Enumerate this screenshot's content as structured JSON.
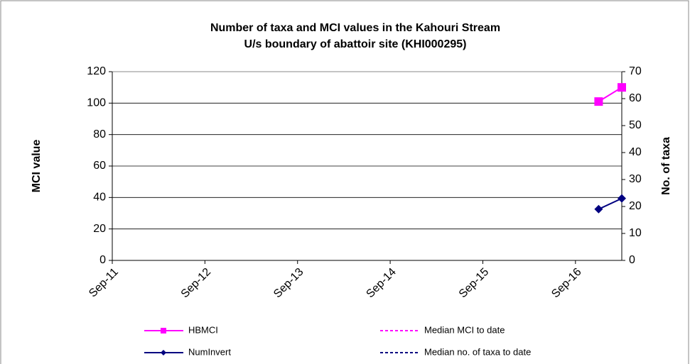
{
  "chart_data": {
    "type": "line",
    "title": "Number of taxa and MCI values in the Kahouri Stream",
    "subtitle": "U/s boundary of abattoir site (KHI000295)",
    "y_label": "MCI value",
    "y2_label": "No. of taxa",
    "x": [
      "2016-12",
      "2017-03"
    ],
    "xlim": [
      "2011-09",
      "2017-03"
    ],
    "xticks": [
      {
        "value": "2011-09",
        "label": "Sep-11"
      },
      {
        "value": "2012-09",
        "label": "Sep-12"
      },
      {
        "value": "2013-09",
        "label": "Sep-13"
      },
      {
        "value": "2014-09",
        "label": "Sep-14"
      },
      {
        "value": "2015-09",
        "label": "Sep-15"
      },
      {
        "value": "2016-09",
        "label": "Sep-16"
      }
    ],
    "ylim": [
      0,
      120
    ],
    "yticks": [
      0,
      20,
      40,
      60,
      80,
      100,
      120
    ],
    "y2lim": [
      0,
      70
    ],
    "y2ticks": [
      0,
      10,
      20,
      30,
      40,
      50,
      60,
      70
    ],
    "series": [
      {
        "name": "HBMCI",
        "color": "#ff00ff",
        "marker": "square",
        "values": [
          101,
          110
        ]
      },
      {
        "name": "NumInvert",
        "color": "#000080",
        "marker": "diamond",
        "axis": "y2",
        "values": [
          19,
          23
        ]
      },
      {
        "name": "Median MCI to date",
        "color": "#ff00ff",
        "dashed": true,
        "values": [
          null,
          null
        ]
      },
      {
        "name": "Median no. of taxa to date",
        "color": "#000080",
        "dashed": true,
        "axis": "y2",
        "values": [
          null,
          null
        ]
      }
    ]
  }
}
